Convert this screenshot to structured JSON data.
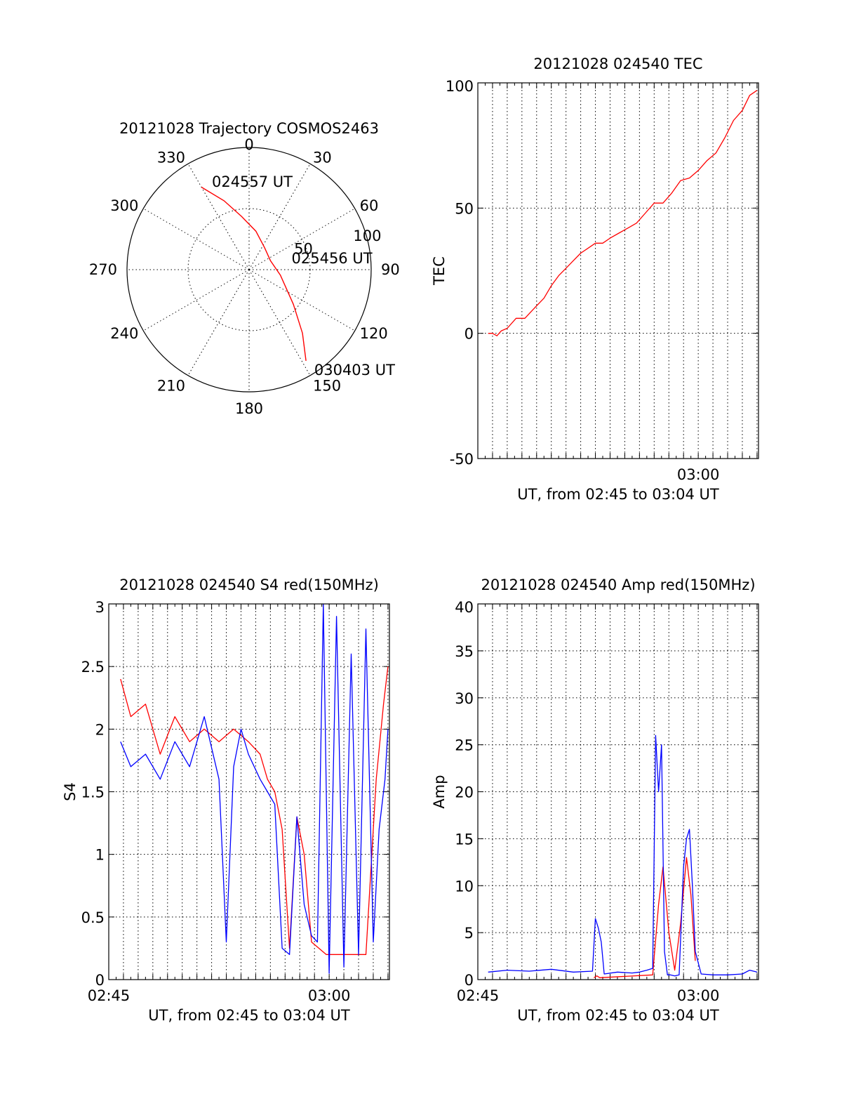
{
  "chart_data": [
    {
      "id": "trajectory",
      "type": "polar",
      "title": "20121028 Trajectory COSMOS2463",
      "angle_labels": [
        "0",
        "30",
        "60",
        "90",
        "120",
        "150",
        "180",
        "210",
        "240",
        "270",
        "300",
        "330"
      ],
      "radial_labels": [
        "50",
        "100"
      ],
      "radial_max": 100,
      "grid": true,
      "series": [
        {
          "color": "#ff0000",
          "points": [
            {
              "az": 330,
              "r": 78
            },
            {
              "az": 340,
              "r": 60
            },
            {
              "az": 352,
              "r": 44
            },
            {
              "az": 10,
              "r": 32
            },
            {
              "az": 35,
              "r": 22
            },
            {
              "az": 67,
              "r": 19
            },
            {
              "az": 100,
              "r": 26
            },
            {
              "az": 128,
              "r": 46
            },
            {
              "az": 140,
              "r": 68
            },
            {
              "az": 148,
              "r": 88
            }
          ]
        }
      ],
      "annotations": [
        {
          "text": "024557 UT",
          "az": 337,
          "r": 78
        },
        {
          "text": "025456 UT",
          "az": 75,
          "r": 36
        },
        {
          "text": "030403 UT",
          "az": 147,
          "r": 98
        }
      ]
    },
    {
      "id": "tec",
      "type": "line",
      "title": "20121028 024540 TEC",
      "xlabel": "UT, from 02:45 to 03:04 UT",
      "ylabel": "TEC",
      "xlim": [
        0,
        19.1
      ],
      "ylim": [
        -50,
        100
      ],
      "yticks": [
        -50,
        0,
        50,
        100
      ],
      "xtick_labels": [
        {
          "x": 15,
          "label": "03:00"
        }
      ],
      "grid": true,
      "series": [
        {
          "color": "#ff0000",
          "x": [
            0.7,
            1.0,
            1.3,
            1.6,
            2.0,
            2.6,
            3.2,
            4.0,
            4.5,
            5.0,
            5.5,
            6.0,
            6.5,
            7.0,
            7.5,
            8.0,
            8.5,
            9.0,
            9.6,
            10.2,
            10.8,
            11.4,
            12.0,
            12.6,
            13.2,
            13.8,
            14.4,
            15.0,
            15.6,
            16.2,
            16.8,
            17.4,
            18.0,
            18.5,
            19.0
          ],
          "y": [
            0,
            0,
            -1,
            1,
            2,
            6,
            6,
            11,
            14,
            19,
            23,
            26,
            29,
            32,
            34,
            36,
            36,
            38,
            40,
            42,
            44,
            48,
            52,
            52,
            56,
            61,
            62,
            65,
            69,
            72,
            78,
            85,
            89,
            95,
            97
          ]
        }
      ]
    },
    {
      "id": "s4",
      "type": "line",
      "title": "20121028 024540 S4 red(150MHz)",
      "xlabel": "UT, from 02:45 to 03:04 UT",
      "ylabel": "S4",
      "xlim": [
        0,
        19.1
      ],
      "ylim": [
        0,
        3
      ],
      "yticks": [
        0,
        0.5,
        1,
        1.5,
        2,
        2.5,
        3
      ],
      "xtick_labels": [
        {
          "x": 0,
          "label": "02:45"
        },
        {
          "x": 15,
          "label": "03:00"
        }
      ],
      "grid": true,
      "series": [
        {
          "color": "#ff0000",
          "x": [
            0.8,
            1.5,
            2.5,
            3.5,
            4.5,
            5.5,
            6.5,
            7.5,
            8.5,
            9.5,
            10.3,
            10.8,
            11.3,
            11.8,
            12.3,
            12.8,
            13.3,
            13.8,
            14.3,
            14.8,
            15.5,
            16.5,
            17.5,
            18.2,
            18.7,
            19.0
          ],
          "y": [
            2.4,
            2.1,
            2.2,
            1.8,
            2.1,
            1.9,
            2.0,
            1.9,
            2.0,
            1.9,
            1.8,
            1.6,
            1.5,
            1.2,
            0.25,
            1.3,
            1.0,
            0.3,
            0.25,
            0.2,
            0.2,
            0.2,
            0.2,
            1.6,
            2.2,
            2.5
          ]
        },
        {
          "color": "#0000ff",
          "x": [
            0.8,
            1.5,
            2.5,
            3.5,
            4.5,
            5.5,
            6.5,
            7.5,
            8.0,
            8.5,
            9.0,
            9.5,
            10.3,
            10.8,
            11.3,
            11.8,
            12.3,
            12.8,
            13.3,
            13.8,
            14.2,
            14.6,
            15.0,
            15.5,
            16.0,
            16.5,
            17.0,
            17.5,
            18.0,
            18.4,
            18.8,
            19.0
          ],
          "y": [
            1.9,
            1.7,
            1.8,
            1.6,
            1.9,
            1.7,
            2.1,
            1.6,
            0.3,
            1.7,
            2.0,
            1.8,
            1.6,
            1.5,
            1.4,
            0.25,
            0.2,
            1.3,
            0.6,
            0.35,
            0.3,
            3.0,
            0.05,
            2.9,
            0.1,
            2.6,
            0.2,
            2.8,
            0.3,
            1.2,
            1.6,
            2.0
          ]
        }
      ]
    },
    {
      "id": "amp",
      "type": "line",
      "title": "20121028 024540 Amp red(150MHz)",
      "xlabel": "UT, from 02:45 to 03:04 UT",
      "ylabel": "Amp",
      "xlim": [
        0,
        19.1
      ],
      "ylim": [
        0,
        40
      ],
      "yticks": [
        0,
        5,
        10,
        15,
        20,
        25,
        30,
        35,
        40
      ],
      "xtick_labels": [
        {
          "x": 0,
          "label": "02:45"
        },
        {
          "x": 15,
          "label": "03:00"
        }
      ],
      "grid": true,
      "series": [
        {
          "color": "#ff0000",
          "x": [
            7.9,
            8.1,
            8.3,
            11.9,
            12.3,
            12.6,
            13.0,
            13.4,
            13.8,
            14.2,
            14.5,
            14.8
          ],
          "y": [
            0.2,
            0.4,
            0.2,
            0.5,
            8,
            12,
            5,
            1,
            6,
            13,
            9,
            2
          ]
        },
        {
          "color": "#0000ff",
          "x": [
            0.7,
            2.0,
            3.5,
            5.0,
            6.5,
            7.8,
            8.0,
            8.2,
            8.4,
            8.6,
            9.5,
            10.5,
            11.0,
            11.5,
            11.9,
            12.1,
            12.3,
            12.5,
            12.7,
            12.9,
            13.1,
            13.4,
            13.7,
            14.0,
            14.2,
            14.4,
            14.6,
            14.8,
            15.2,
            16.0,
            17.0,
            18.0,
            18.5,
            19.0
          ],
          "y": [
            0.8,
            1.0,
            0.9,
            1.1,
            0.8,
            0.9,
            6.5,
            5.5,
            4.0,
            0.6,
            0.8,
            0.7,
            0.8,
            1.0,
            1.2,
            26,
            20,
            25,
            3,
            0.5,
            0.5,
            0.4,
            0.5,
            12,
            15,
            16,
            10,
            3,
            0.6,
            0.5,
            0.5,
            0.6,
            1.0,
            0.8
          ]
        }
      ]
    }
  ]
}
